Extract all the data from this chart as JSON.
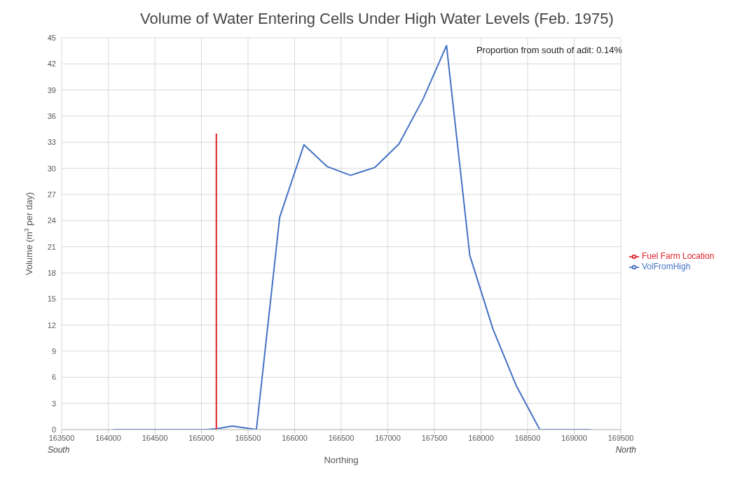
{
  "chart_data": {
    "type": "line",
    "title": "Volume of Water Entering Cells Under High Water Levels (Feb. 1975)",
    "xlabel": "Northing",
    "ylabel": "Volume (m$^{3}$ per day)",
    "annotations": [
      "Proportion from south of adit: 0.14%",
      "South",
      "North"
    ],
    "series": [
      {
        "name": "VolFromHigh",
        "color": "#4472c4",
        "x": [
          164050,
          164300,
          164550,
          164800,
          165050,
          165170,
          165330,
          165590,
          165840,
          166100,
          166350,
          166600,
          166860,
          167120,
          167380,
          167630,
          167880,
          168130,
          168380,
          168630,
          168880,
          169180
        ],
        "values": [
          0,
          0,
          0,
          0,
          0,
          0.1,
          0.4,
          0,
          24.4,
          32.7,
          30.2,
          29.2,
          30.1,
          32.8,
          38,
          44.1,
          20,
          11.5,
          5,
          0,
          0,
          0
        ]
      },
      {
        "name": "Fuel Farm Location",
        "color": "#e0202c",
        "x": [
          165160,
          165160
        ],
        "values": [
          0,
          34
        ]
      }
    ],
    "xlim": [
      163500,
      169500
    ],
    "xticks": [
      163500,
      164000,
      164500,
      165000,
      165500,
      166000,
      166500,
      167000,
      167500,
      168000,
      168500,
      169000,
      169500
    ],
    "ylim": [
      0,
      45
    ],
    "yticks": [
      0,
      3,
      6,
      9,
      12,
      15,
      18,
      21,
      24,
      27,
      30,
      33,
      36,
      39,
      42,
      45
    ],
    "grid": true,
    "legend": "right",
    "marker": "none",
    "line_style": "solid"
  }
}
